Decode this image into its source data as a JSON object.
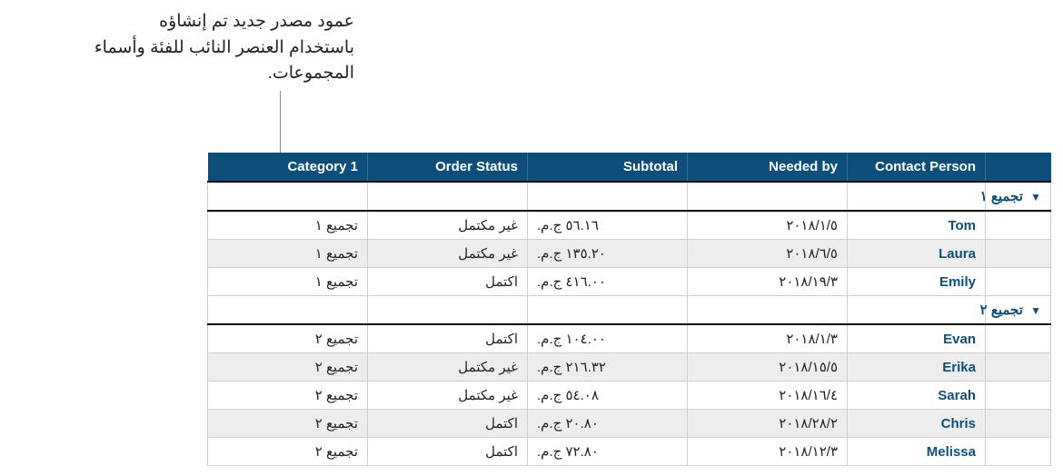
{
  "callout": "عمود مصدر جديد تم إنشاؤه باستخدام العنصر النائب للفئة وأسماء المجموعات.",
  "header": {
    "col1": "Category 1",
    "col2": "Order Status",
    "col3": "Subtotal",
    "col4": "Needed by",
    "col5": "Contact Person",
    "col6": ""
  },
  "groups": [
    {
      "label": "تجميع ١",
      "rows": [
        {
          "cat": "تجميع ١",
          "status": "غير مكتمل",
          "subtotal": "٥٦.١٦ ج.م.",
          "date": "٢٠١٨/١/٥",
          "contact": "Tom"
        },
        {
          "cat": "تجميع ١",
          "status": "غير مكتمل",
          "subtotal": "١٣٥.٢٠ ج.م.",
          "date": "٢٠١٨/٦/٥",
          "contact": "Laura"
        },
        {
          "cat": "تجميع ١",
          "status": "اكتمل",
          "subtotal": "٤١٦.٠٠ ج.م.",
          "date": "٢٠١٨/١٩/٣",
          "contact": "Emily"
        }
      ]
    },
    {
      "label": "تجميع ٢",
      "rows": [
        {
          "cat": "تجميع ٢",
          "status": "اكتمل",
          "subtotal": "١٠٤.٠٠ ج.م.",
          "date": "٢٠١٨/١/٣",
          "contact": "Evan"
        },
        {
          "cat": "تجميع ٢",
          "status": "غير مكتمل",
          "subtotal": "٢١٦.٣٢ ج.م.",
          "date": "٢٠١٨/١٥/٥",
          "contact": "Erika"
        },
        {
          "cat": "تجميع ٢",
          "status": "غير مكتمل",
          "subtotal": "٥٤.٠٨ ج.م.",
          "date": "٢٠١٨/١٦/٤",
          "contact": "Sarah"
        },
        {
          "cat": "تجميع ٢",
          "status": "اكتمل",
          "subtotal": "٢٠.٨٠ ج.م.",
          "date": "٢٠١٨/٢٨/٢",
          "contact": "Chris"
        },
        {
          "cat": "تجميع ٢",
          "status": "اكتمل",
          "subtotal": "٧٢.٨٠ ج.م.",
          "date": "٢٠١٨/١٢/٣",
          "contact": "Melissa"
        }
      ]
    }
  ],
  "colors": {
    "header_bg": "#0d4f7a",
    "header_text": "#ffffff",
    "row_alt_bg": "#ededed",
    "link_color": "#0d4f7a",
    "border": "#cfcfcf"
  }
}
